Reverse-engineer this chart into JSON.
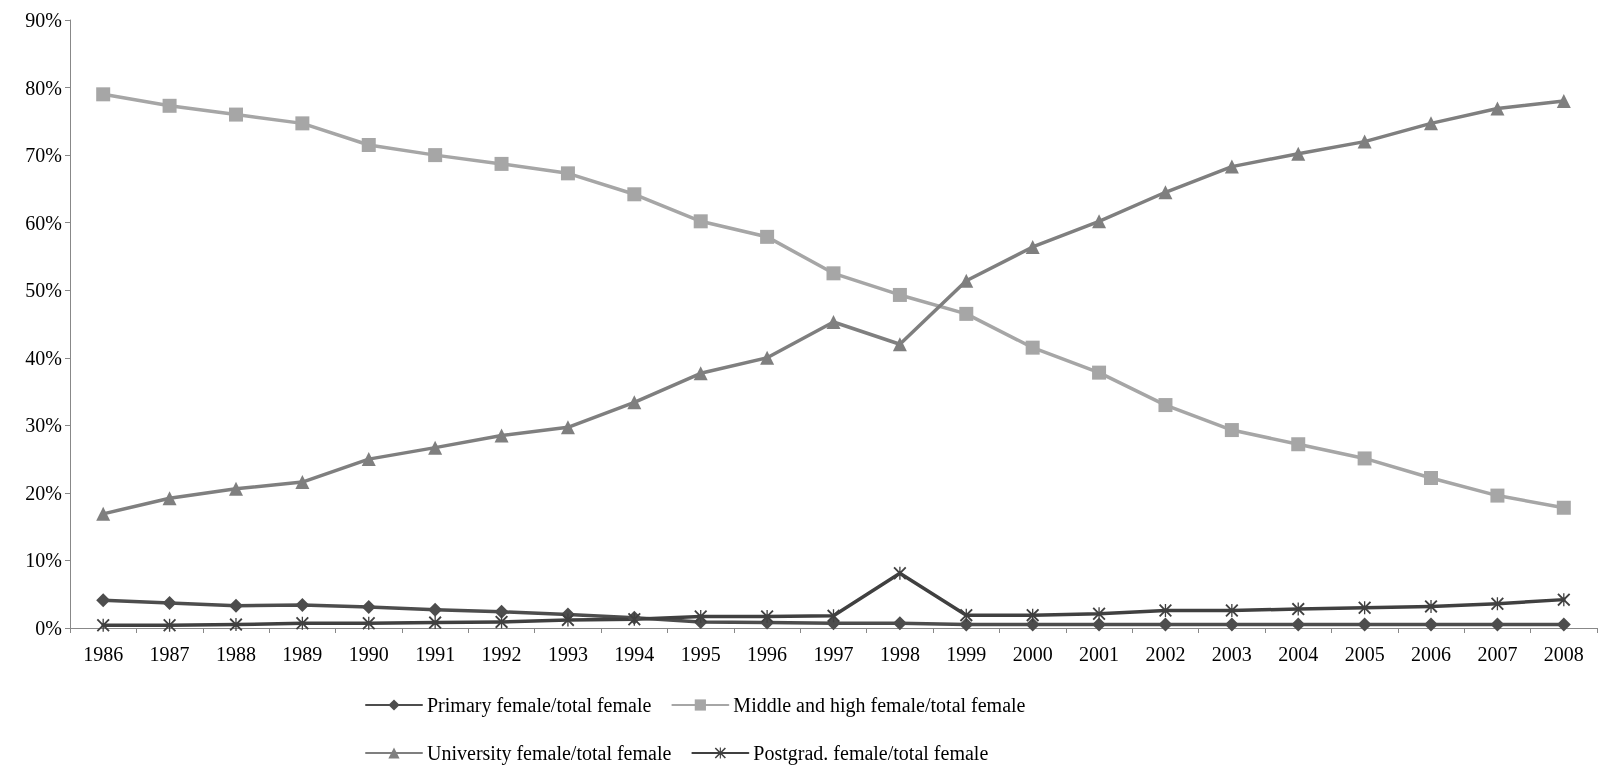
{
  "chart_data": {
    "type": "line",
    "categories": [
      "1986",
      "1987",
      "1988",
      "1989",
      "1990",
      "1991",
      "1992",
      "1993",
      "1994",
      "1995",
      "1996",
      "1997",
      "1998",
      "1999",
      "2000",
      "2001",
      "2002",
      "2003",
      "2004",
      "2005",
      "2006",
      "2007",
      "2008"
    ],
    "series": [
      {
        "name": "Primary female/total female",
        "color": "#4d4d4d",
        "marker": "diamond",
        "values": [
          4.1,
          3.7,
          3.3,
          3.4,
          3.1,
          2.7,
          2.4,
          2.0,
          1.5,
          0.9,
          0.8,
          0.7,
          0.7,
          0.5,
          0.5,
          0.5,
          0.5,
          0.5,
          0.5,
          0.5,
          0.5,
          0.5,
          0.5
        ]
      },
      {
        "name": "Middle and high female/total female",
        "color": "#a6a6a6",
        "marker": "square",
        "values": [
          79,
          77.3,
          76,
          74.7,
          71.5,
          70,
          68.7,
          67.3,
          64.2,
          60.2,
          57.9,
          52.5,
          49.3,
          46.5,
          41.5,
          37.8,
          33,
          29.3,
          27.2,
          25.1,
          22.2,
          19.6,
          17.8
        ]
      },
      {
        "name": "University female/total female",
        "color": "#7f7f7f",
        "marker": "triangle",
        "values": [
          16.9,
          19.2,
          20.6,
          21.6,
          25,
          26.7,
          28.5,
          29.7,
          33.4,
          37.7,
          40,
          45.3,
          42,
          51.4,
          56.4,
          60.2,
          64.5,
          68.3,
          70.2,
          72,
          74.7,
          76.9,
          78
        ]
      },
      {
        "name": "Postgrad. female/total female",
        "color": "#404040",
        "marker": "cross",
        "values": [
          0.4,
          0.4,
          0.5,
          0.7,
          0.7,
          0.8,
          0.9,
          1.2,
          1.3,
          1.7,
          1.7,
          1.8,
          8.1,
          1.9,
          1.9,
          2.1,
          2.6,
          2.6,
          2.8,
          3.0,
          3.2,
          3.6,
          4.2
        ]
      }
    ],
    "ylim": [
      0,
      90
    ],
    "yticks": [
      {
        "value": 0,
        "label": "0%"
      },
      {
        "value": 10,
        "label": "10%"
      },
      {
        "value": 20,
        "label": "20%"
      },
      {
        "value": 30,
        "label": "30%"
      },
      {
        "value": 40,
        "label": "40%"
      },
      {
        "value": 50,
        "label": "50%"
      },
      {
        "value": 60,
        "label": "60%"
      },
      {
        "value": 70,
        "label": "70%"
      },
      {
        "value": 80,
        "label": "80%"
      },
      {
        "value": 90,
        "label": "90%"
      }
    ],
    "grid": false,
    "legend": "bottom",
    "line_style": "solid"
  }
}
